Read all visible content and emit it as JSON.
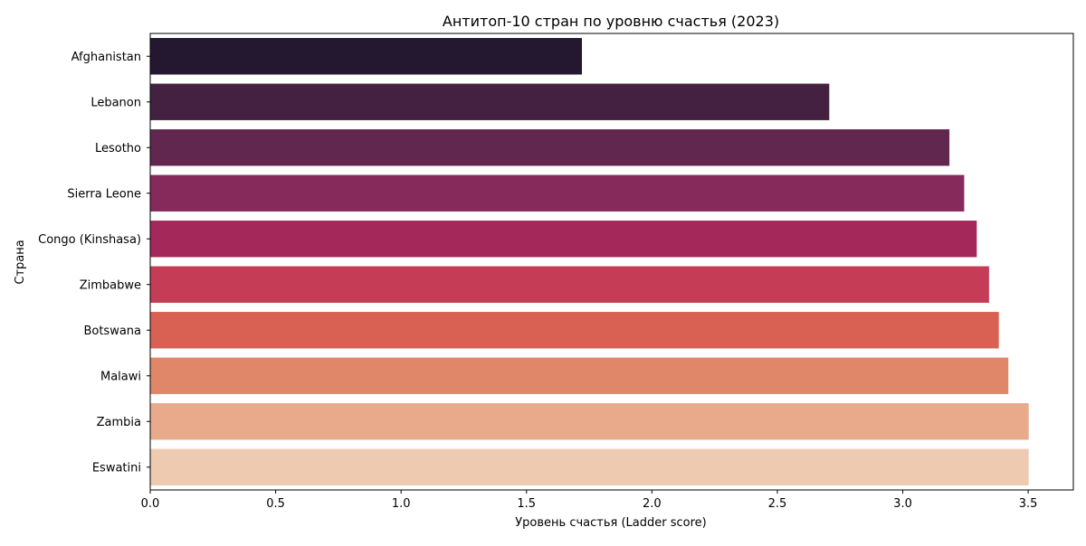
{
  "chart_data": {
    "type": "bar",
    "orientation": "horizontal",
    "title": "Антитоп-10 стран по уровню счастья (2023)",
    "xlabel": "Уровень счастья (Ladder score)",
    "ylabel": "Страна",
    "xlim": [
      0,
      3.68
    ],
    "xticks": [
      0.0,
      0.5,
      1.0,
      1.5,
      2.0,
      2.5,
      3.0,
      3.5
    ],
    "xtick_labels": [
      "0.0",
      "0.5",
      "1.0",
      "1.5",
      "2.0",
      "2.5",
      "3.0",
      "3.5"
    ],
    "grid": false,
    "categories": [
      "Afghanistan",
      "Lebanon",
      "Lesotho",
      "Sierra Leone",
      "Congo (Kinshasa)",
      "Zimbabwe",
      "Botswana",
      "Malawi",
      "Zambia",
      "Eswatini"
    ],
    "values": [
      1.721,
      2.707,
      3.186,
      3.245,
      3.295,
      3.344,
      3.383,
      3.421,
      3.502,
      3.502
    ],
    "colors": [
      "#231830",
      "#442140",
      "#61274f",
      "#852a5a",
      "#a4285a",
      "#c43c56",
      "#d86154",
      "#e0876a",
      "#e8aa8a",
      "#eecab1"
    ]
  }
}
